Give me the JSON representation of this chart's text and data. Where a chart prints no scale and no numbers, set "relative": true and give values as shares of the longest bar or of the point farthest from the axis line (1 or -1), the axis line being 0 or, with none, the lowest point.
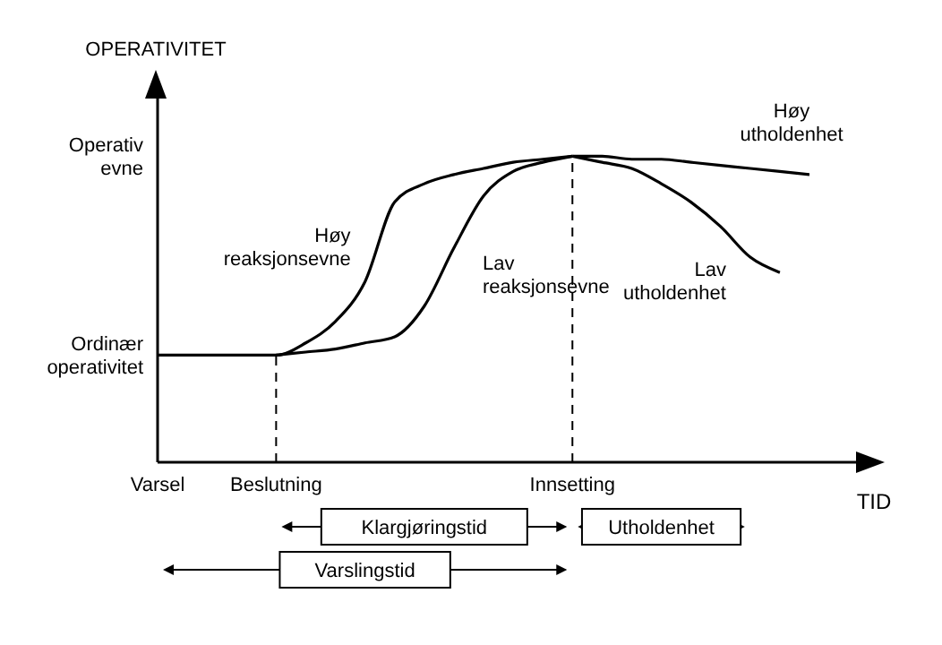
{
  "chart_data": {
    "type": "line",
    "relative": true,
    "xlabel": "TID",
    "ylabel": "OPERATIVITET",
    "marker": "none",
    "line_style": "solid",
    "categories": [
      "Varsel",
      null,
      null,
      null,
      "Beslutning",
      null,
      null,
      null,
      null,
      null,
      null,
      null,
      null,
      null,
      "Innsetting",
      null,
      null,
      null,
      null,
      null,
      null,
      null,
      null
    ],
    "series": [
      {
        "name": "Høy reaksjonsevne",
        "color": "#000000",
        "values": [
          0.35,
          0.35,
          0.35,
          0.35,
          0.35,
          0.39,
          0.46,
          0.59,
          0.85,
          0.91,
          0.94,
          0.96,
          0.98,
          0.99,
          1,
          null,
          null,
          null,
          null,
          null,
          null,
          null,
          null
        ]
      },
      {
        "name": "Lav reaksjonsevne",
        "color": "#000000",
        "values": [
          null,
          null,
          null,
          null,
          0.35,
          0.36,
          0.37,
          0.39,
          0.41,
          0.51,
          0.7,
          0.87,
          0.95,
          0.98,
          1,
          null,
          null,
          null,
          null,
          null,
          null,
          null,
          null
        ]
      },
      {
        "name": "Høy utholdenhet",
        "color": "#000000",
        "values": [
          null,
          null,
          null,
          null,
          null,
          null,
          null,
          null,
          null,
          null,
          null,
          null,
          null,
          null,
          1,
          1,
          0.99,
          0.99,
          0.98,
          0.97,
          0.96,
          0.95,
          0.94
        ]
      },
      {
        "name": "Lav utholdenhet",
        "color": "#000000",
        "values": [
          null,
          null,
          null,
          null,
          null,
          null,
          null,
          null,
          null,
          null,
          null,
          null,
          null,
          null,
          1,
          0.98,
          0.96,
          0.91,
          0.85,
          0.77,
          0.67,
          0.62,
          null
        ]
      }
    ],
    "ref_lines": [
      {
        "axis": "x",
        "value": "Beslutning",
        "line_style": "dashed"
      },
      {
        "axis": "x",
        "value": "Innsetting",
        "line_style": "dashed"
      }
    ],
    "annotations": [
      "Operativ evne",
      "Ordinær operativitet",
      "Klargjøringstid",
      "Utholdenhet",
      "Varslingstid"
    ]
  }
}
